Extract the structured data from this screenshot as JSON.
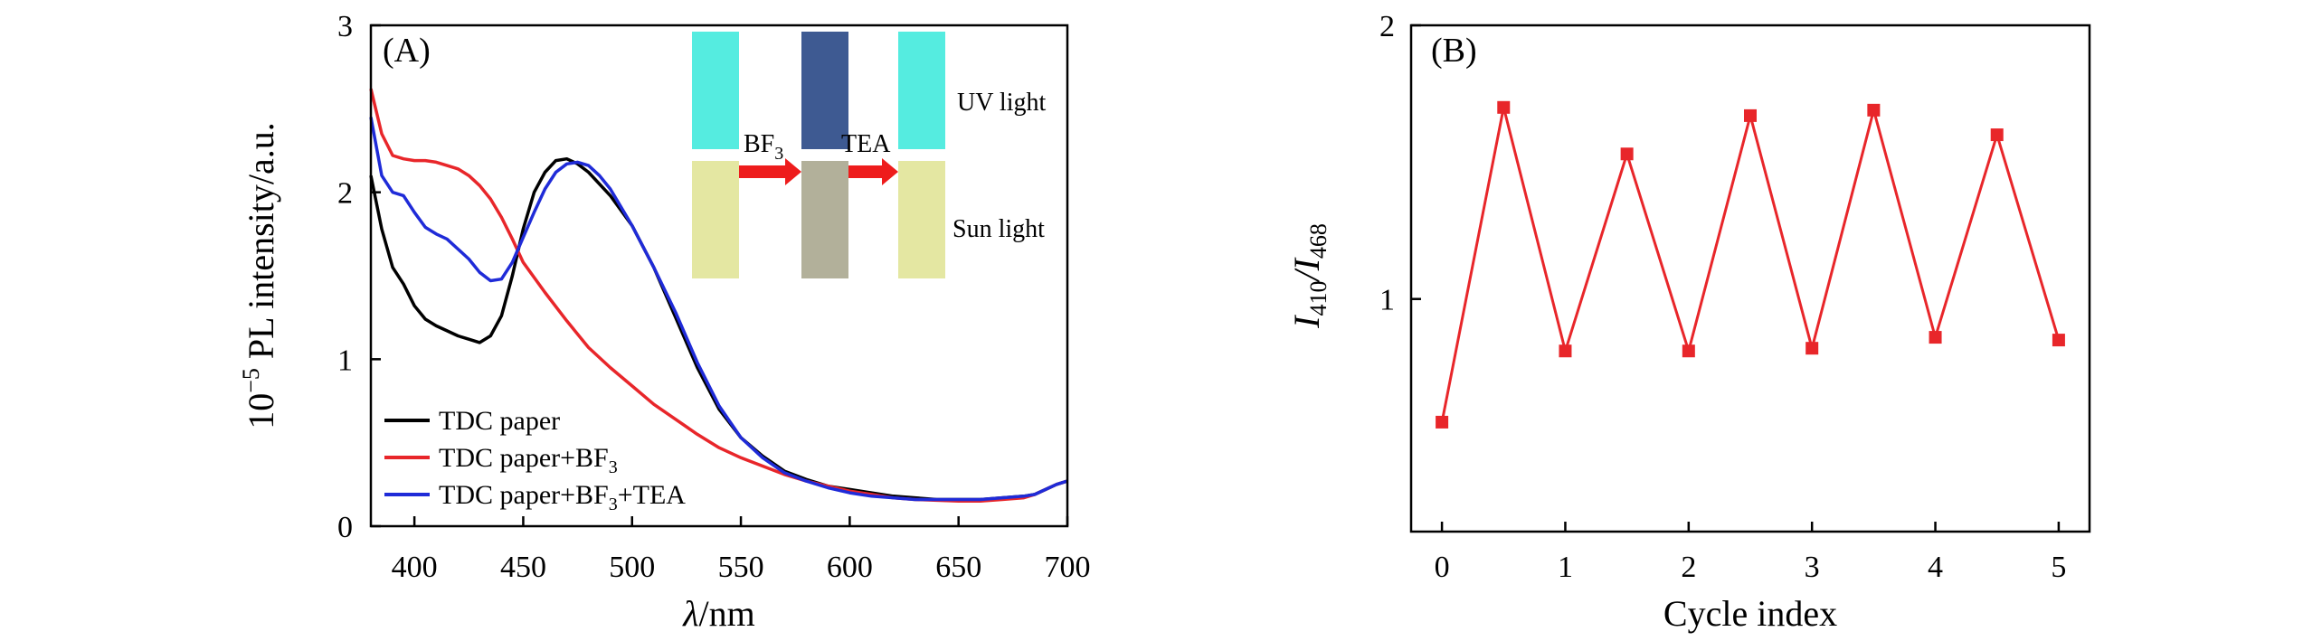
{
  "chart_data": [
    {
      "panel": "(A)",
      "type": "line",
      "xlabel_symbol": "λ",
      "xlabel_unit": "/nm",
      "ylabel_prefix": "10",
      "ylabel_exponent": "−5",
      "ylabel_text": " PL intensity/a.u.",
      "xlim": [
        380,
        700
      ],
      "ylim": [
        0,
        3
      ],
      "xticks": [
        400,
        450,
        500,
        550,
        600,
        650,
        700
      ],
      "yticks": [
        0,
        1,
        2,
        3
      ],
      "grid": false,
      "legend_position": "bottom-left",
      "series": [
        {
          "name": "TDC paper",
          "color": "#000000",
          "x": [
            380,
            385,
            390,
            395,
            400,
            405,
            410,
            415,
            420,
            425,
            430,
            435,
            440,
            445,
            450,
            455,
            460,
            465,
            470,
            475,
            480,
            490,
            500,
            510,
            520,
            530,
            540,
            550,
            560,
            570,
            580,
            590,
            600,
            610,
            620,
            630,
            640,
            650,
            660,
            670,
            680,
            685,
            690,
            695,
            700
          ],
          "y": [
            2.1,
            1.78,
            1.55,
            1.45,
            1.32,
            1.24,
            1.2,
            1.17,
            1.14,
            1.12,
            1.1,
            1.14,
            1.26,
            1.5,
            1.78,
            2.0,
            2.12,
            2.19,
            2.2,
            2.17,
            2.12,
            1.98,
            1.8,
            1.55,
            1.25,
            0.95,
            0.7,
            0.53,
            0.42,
            0.33,
            0.28,
            0.24,
            0.22,
            0.2,
            0.18,
            0.17,
            0.16,
            0.16,
            0.16,
            0.17,
            0.18,
            0.19,
            0.22,
            0.25,
            0.27
          ]
        },
        {
          "name": "TDC paper+BF",
          "name_subscript": "3",
          "color": "#e8262a",
          "x": [
            380,
            385,
            390,
            395,
            400,
            405,
            410,
            415,
            420,
            425,
            430,
            435,
            440,
            445,
            450,
            460,
            470,
            480,
            490,
            500,
            510,
            520,
            530,
            540,
            550,
            560,
            570,
            580,
            590,
            600,
            610,
            620,
            630,
            640,
            650,
            660,
            670,
            680,
            685,
            690,
            695,
            700
          ],
          "y": [
            2.62,
            2.35,
            2.22,
            2.2,
            2.19,
            2.19,
            2.18,
            2.16,
            2.14,
            2.1,
            2.04,
            1.96,
            1.85,
            1.72,
            1.58,
            1.4,
            1.23,
            1.07,
            0.95,
            0.84,
            0.73,
            0.64,
            0.55,
            0.47,
            0.41,
            0.36,
            0.31,
            0.27,
            0.24,
            0.21,
            0.19,
            0.17,
            0.16,
            0.155,
            0.15,
            0.15,
            0.16,
            0.17,
            0.19,
            0.22,
            0.25,
            0.27
          ]
        },
        {
          "name": "TDC paper+BF",
          "name_subscript": "3",
          "name_suffix": "+TEA",
          "color": "#1f2bd8",
          "x": [
            380,
            385,
            390,
            395,
            400,
            405,
            410,
            415,
            420,
            425,
            430,
            435,
            440,
            445,
            450,
            455,
            460,
            465,
            470,
            475,
            480,
            485,
            490,
            500,
            510,
            520,
            530,
            540,
            550,
            560,
            570,
            580,
            590,
            600,
            610,
            620,
            630,
            640,
            650,
            660,
            670,
            680,
            685,
            690,
            695,
            700
          ],
          "y": [
            2.45,
            2.1,
            2.0,
            1.98,
            1.88,
            1.79,
            1.75,
            1.72,
            1.66,
            1.6,
            1.52,
            1.47,
            1.48,
            1.58,
            1.73,
            1.88,
            2.02,
            2.12,
            2.17,
            2.18,
            2.16,
            2.1,
            2.02,
            1.8,
            1.55,
            1.28,
            0.98,
            0.72,
            0.53,
            0.41,
            0.32,
            0.27,
            0.23,
            0.2,
            0.18,
            0.17,
            0.16,
            0.16,
            0.16,
            0.16,
            0.17,
            0.18,
            0.19,
            0.22,
            0.25,
            0.27
          ]
        }
      ],
      "inset": {
        "rows": [
          "UV light",
          "Sun light"
        ],
        "arrow_labels": [
          {
            "text": "BF",
            "subscript": "3"
          },
          {
            "text": "TEA",
            "subscript": ""
          }
        ],
        "swatches": {
          "uv": [
            "#55ece0",
            "#3e5a92",
            "#55ece0"
          ],
          "sun": [
            "#e4e7a2",
            "#b2b09a",
            "#e4e7a2"
          ]
        },
        "arrow_color": "#ee1c1c"
      }
    },
    {
      "panel": "(B)",
      "type": "line",
      "xlabel": "Cycle index",
      "ylabel_parts": [
        {
          "text": "I",
          "sub": "410"
        },
        {
          "text": "/I",
          "sub": "468"
        }
      ],
      "xlim": [
        -0.25,
        5.25
      ],
      "ylim": [
        0.15,
        2
      ],
      "xticks": [
        0,
        1,
        2,
        3,
        4,
        5
      ],
      "yticks": [
        1,
        2
      ],
      "grid": false,
      "series": [
        {
          "name": "I410/I468",
          "color": "#e8262a",
          "marker": "square",
          "x": [
            0,
            0.5,
            1,
            1.5,
            2,
            2.5,
            3,
            3.5,
            4,
            4.5,
            5
          ],
          "y": [
            0.55,
            1.7,
            0.81,
            1.53,
            0.81,
            1.67,
            0.82,
            1.69,
            0.86,
            1.6,
            0.85
          ]
        }
      ]
    }
  ]
}
